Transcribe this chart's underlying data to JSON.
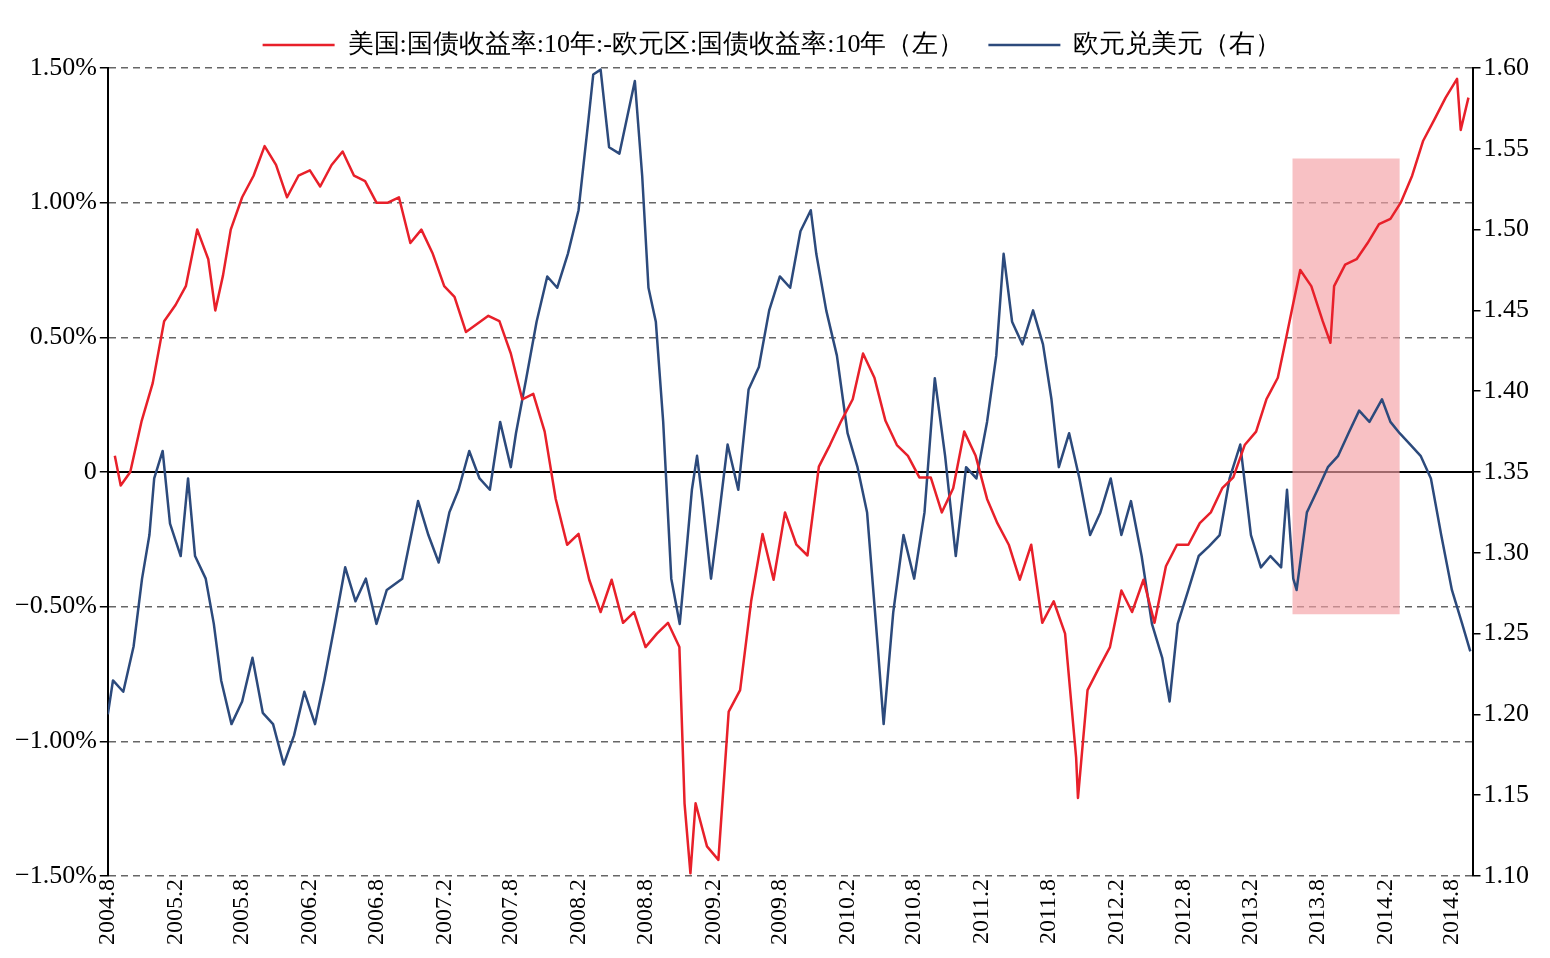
{
  "chart_data": {
    "type": "line",
    "legend": "top",
    "grid": "y",
    "xlim": [
      "2004-08-01",
      "2014-09-26"
    ],
    "xticks": [
      {
        "value": "2004-08",
        "label": "2004.8"
      },
      {
        "value": "2005-02",
        "label": "2005.2"
      },
      {
        "value": "2005-08",
        "label": "2005.8"
      },
      {
        "value": "2006-02",
        "label": "2006.2"
      },
      {
        "value": "2006-08",
        "label": "2006.8"
      },
      {
        "value": "2007-02",
        "label": "2007.2"
      },
      {
        "value": "2007-08",
        "label": "2007.8"
      },
      {
        "value": "2008-02",
        "label": "2008.2"
      },
      {
        "value": "2008-08",
        "label": "2008.8"
      },
      {
        "value": "2009-02",
        "label": "2009.2"
      },
      {
        "value": "2009-08",
        "label": "2009.8"
      },
      {
        "value": "2010-02",
        "label": "2010.2"
      },
      {
        "value": "2010-08",
        "label": "2010.8"
      },
      {
        "value": "2011-02",
        "label": "2011.2"
      },
      {
        "value": "2011-08",
        "label": "2011.8"
      },
      {
        "value": "2012-02",
        "label": "2012.2"
      },
      {
        "value": "2012-08",
        "label": "2012.8"
      },
      {
        "value": "2013-02",
        "label": "2013.2"
      },
      {
        "value": "2013-08",
        "label": "2013.8"
      },
      {
        "value": "2014-02",
        "label": "2014.2"
      },
      {
        "value": "2014-08",
        "label": "2014.8"
      }
    ],
    "ylim": [
      -1.5,
      1.5
    ],
    "yticks": [
      {
        "value": -1.5,
        "label": "−1.50%"
      },
      {
        "value": -1,
        "label": "−1.00%"
      },
      {
        "value": -0.5,
        "label": "−0.50%"
      },
      {
        "value": 0,
        "label": "0"
      },
      {
        "value": 0.5,
        "label": "0.50%"
      },
      {
        "value": 1,
        "label": "1.00%"
      },
      {
        "value": 1.5,
        "label": "1.50%"
      }
    ],
    "y2lim": [
      1.1,
      1.6
    ],
    "y2ticks": [
      {
        "value": 1.1,
        "label": "1.10"
      },
      {
        "value": 1.15,
        "label": "1.15"
      },
      {
        "value": 1.2,
        "label": "1.20"
      },
      {
        "value": 1.25,
        "label": "1.25"
      },
      {
        "value": 1.3,
        "label": "1.30"
      },
      {
        "value": 1.35,
        "label": "1.35"
      },
      {
        "value": 1.4,
        "label": "1.40"
      },
      {
        "value": 1.45,
        "label": "1.45"
      },
      {
        "value": 1.5,
        "label": "1.50"
      },
      {
        "value": 1.55,
        "label": "1.55"
      },
      {
        "value": 1.6,
        "label": "1.60"
      }
    ],
    "ref_lines": [
      {
        "axis": "y",
        "value": 0,
        "color": "#000000"
      }
    ],
    "bands": [
      {
        "axis": "x",
        "from": "2013-05-25",
        "to": "2014-03-12",
        "color": "#f4a0a4"
      }
    ],
    "series": [
      {
        "name": "美国:国债收益率:10年:-欧元区:国债收益率:10年（左）",
        "axis": "y",
        "color": "#e8202a",
        "x": [
          "2004-08-20",
          "2004-09-05",
          "2004-10-01",
          "2004-11-01",
          "2004-12-01",
          "2005-01-01",
          "2005-02-01",
          "2005-03-01",
          "2005-04-01",
          "2005-05-01",
          "2005-05-20",
          "2005-06-10",
          "2005-07-01",
          "2005-08-01",
          "2005-09-01",
          "2005-10-01",
          "2005-11-01",
          "2005-12-01",
          "2006-01-01",
          "2006-02-01",
          "2006-03-01",
          "2006-04-01",
          "2006-05-01",
          "2006-06-01",
          "2006-07-01",
          "2006-08-01",
          "2006-09-01",
          "2006-10-01",
          "2006-11-01",
          "2006-12-01",
          "2007-01-01",
          "2007-02-01",
          "2007-03-01",
          "2007-04-01",
          "2007-06-01",
          "2007-07-01",
          "2007-08-01",
          "2007-09-01",
          "2007-10-01",
          "2007-11-01",
          "2007-12-01",
          "2008-01-01",
          "2008-02-01",
          "2008-03-01",
          "2008-04-01",
          "2008-05-01",
          "2008-06-01",
          "2008-07-01",
          "2008-08-01",
          "2008-09-01",
          "2008-10-01",
          "2008-11-01",
          "2008-11-15",
          "2008-12-01",
          "2008-12-15",
          "2009-01-15",
          "2009-02-15",
          "2009-03-15",
          "2009-04-15",
          "2009-05-15",
          "2009-06-15",
          "2009-07-15",
          "2009-08-15",
          "2009-09-15",
          "2009-10-15",
          "2009-11-15",
          "2009-12-15",
          "2010-01-15",
          "2010-02-15",
          "2010-03-15",
          "2010-04-15",
          "2010-05-15",
          "2010-06-15",
          "2010-07-15",
          "2010-08-15",
          "2010-09-15",
          "2010-10-15",
          "2010-11-15",
          "2010-12-15",
          "2011-01-15",
          "2011-02-15",
          "2011-03-15",
          "2011-04-15",
          "2011-05-15",
          "2011-06-15",
          "2011-07-15",
          "2011-08-15",
          "2011-09-15",
          "2011-10-15",
          "2011-10-20",
          "2011-11-15",
          "2011-12-15",
          "2012-01-15",
          "2012-02-15",
          "2012-03-15",
          "2012-04-15",
          "2012-05-15",
          "2012-06-15",
          "2012-07-15",
          "2012-08-15",
          "2012-09-15",
          "2012-10-15",
          "2012-11-15",
          "2012-12-15",
          "2013-01-15",
          "2013-02-15",
          "2013-03-15",
          "2013-04-15",
          "2013-05-05",
          "2013-05-26",
          "2013-06-15",
          "2013-07-15",
          "2013-08-15",
          "2013-09-05",
          "2013-09-15",
          "2013-10-15",
          "2013-11-15",
          "2013-12-15",
          "2014-01-15",
          "2014-02-15",
          "2014-03-15",
          "2014-04-15",
          "2014-05-15",
          "2014-06-15",
          "2014-07-15",
          "2014-08-15",
          "2014-08-25",
          "2014-09-15"
        ],
        "values": [
          0.06,
          -0.05,
          0.0,
          0.19,
          0.33,
          0.56,
          0.62,
          0.69,
          0.9,
          0.79,
          0.6,
          0.73,
          0.9,
          1.02,
          1.1,
          1.21,
          1.14,
          1.02,
          1.1,
          1.12,
          1.06,
          1.14,
          1.19,
          1.1,
          1.08,
          1.0,
          1.0,
          1.02,
          0.85,
          0.9,
          0.81,
          0.69,
          0.65,
          0.52,
          0.58,
          0.56,
          0.44,
          0.27,
          0.29,
          0.15,
          -0.1,
          -0.27,
          -0.23,
          -0.4,
          -0.52,
          -0.4,
          -0.56,
          -0.52,
          -0.65,
          -0.6,
          -0.56,
          -0.65,
          -1.23,
          -1.49,
          -1.23,
          -1.39,
          -1.44,
          -0.89,
          -0.81,
          -0.48,
          -0.23,
          -0.4,
          -0.15,
          -0.27,
          -0.31,
          0.02,
          0.1,
          0.19,
          0.27,
          0.44,
          0.35,
          0.19,
          0.1,
          0.06,
          -0.02,
          -0.02,
          -0.15,
          -0.06,
          0.15,
          0.06,
          -0.1,
          -0.19,
          -0.27,
          -0.4,
          -0.27,
          -0.56,
          -0.48,
          -0.6,
          -1.06,
          -1.21,
          -0.81,
          -0.73,
          -0.65,
          -0.44,
          -0.52,
          -0.4,
          -0.56,
          -0.35,
          -0.27,
          -0.27,
          -0.19,
          -0.15,
          -0.06,
          -0.02,
          0.1,
          0.15,
          0.27,
          0.35,
          0.48,
          0.62,
          0.75,
          0.69,
          0.56,
          0.48,
          0.69,
          0.77,
          0.79,
          0.85,
          0.92,
          0.94,
          1.0,
          1.1,
          1.23,
          1.31,
          1.39,
          1.46,
          1.27,
          1.39
        ]
      },
      {
        "name": "欧元兑美元（右）",
        "axis": "y2",
        "color": "#2c4a7c",
        "x": [
          "2004-08-01",
          "2004-08-15",
          "2004-09-12",
          "2004-10-10",
          "2004-11-02",
          "2004-11-22",
          "2004-12-05",
          "2004-12-28",
          "2005-01-17",
          "2005-02-15",
          "2005-03-07",
          "2005-03-26",
          "2005-04-24",
          "2005-05-16",
          "2005-06-05",
          "2005-07-03",
          "2005-08-01",
          "2005-08-29",
          "2005-09-26",
          "2005-10-24",
          "2005-11-22",
          "2005-12-20",
          "2006-01-17",
          "2006-02-15",
          "2006-03-12",
          "2006-04-10",
          "2006-05-08",
          "2006-06-05",
          "2006-07-03",
          "2006-08-01",
          "2006-08-29",
          "2006-10-10",
          "2006-11-22",
          "2006-12-20",
          "2007-01-17",
          "2007-02-15",
          "2007-03-12",
          "2007-04-10",
          "2007-05-08",
          "2007-06-05",
          "2007-07-03",
          "2007-08-01",
          "2007-08-15",
          "2007-09-12",
          "2007-10-10",
          "2007-11-08",
          "2007-12-05",
          "2008-01-03",
          "2008-02-01",
          "2008-02-28",
          "2008-03-12",
          "2008-04-01",
          "2008-04-24",
          "2008-05-22",
          "2008-07-03",
          "2008-07-23",
          "2008-08-09",
          "2008-08-29",
          "2008-09-18",
          "2008-10-10",
          "2008-11-02",
          "2008-11-19",
          "2008-12-05",
          "2008-12-19",
          "2009-01-03",
          "2009-01-26",
          "2009-02-14",
          "2009-03-12",
          "2009-04-10",
          "2009-05-08",
          "2009-06-05",
          "2009-07-03",
          "2009-08-01",
          "2009-08-29",
          "2009-09-26",
          "2009-10-24",
          "2009-11-08",
          "2009-12-05",
          "2010-01-03",
          "2010-02-01",
          "2010-02-28",
          "2010-03-26",
          "2010-04-24",
          "2010-05-10",
          "2010-06-05",
          "2010-07-03",
          "2010-08-01",
          "2010-08-29",
          "2010-09-26",
          "2010-10-24",
          "2010-11-22",
          "2010-12-20",
          "2011-01-17",
          "2011-02-15",
          "2011-03-12",
          "2011-04-01",
          "2011-04-24",
          "2011-05-22",
          "2011-06-20",
          "2011-07-17",
          "2011-08-09",
          "2011-08-29",
          "2011-09-26",
          "2011-10-24",
          "2011-11-22",
          "2011-12-20",
          "2012-01-17",
          "2012-02-15",
          "2012-03-12",
          "2012-04-10",
          "2012-05-08",
          "2012-06-05",
          "2012-06-25",
          "2012-07-17",
          "2012-08-15",
          "2012-09-12",
          "2012-10-10",
          "2012-11-08",
          "2012-12-05",
          "2013-01-03",
          "2013-02-01",
          "2013-02-28",
          "2013-03-26",
          "2013-04-24",
          "2013-05-10",
          "2013-05-27",
          "2013-06-05",
          "2013-07-03",
          "2013-08-01",
          "2013-08-29",
          "2013-09-26",
          "2013-10-24",
          "2013-11-22",
          "2013-12-20",
          "2014-01-23",
          "2014-02-15",
          "2014-03-12",
          "2014-04-10",
          "2014-05-08",
          "2014-06-05",
          "2014-07-03",
          "2014-08-01",
          "2014-08-29",
          "2014-09-20"
        ],
        "values": [
          1.2,
          1.221,
          1.214,
          1.242,
          1.284,
          1.311,
          1.346,
          1.363,
          1.318,
          1.298,
          1.346,
          1.298,
          1.284,
          1.256,
          1.221,
          1.194,
          1.208,
          1.235,
          1.201,
          1.194,
          1.169,
          1.187,
          1.214,
          1.194,
          1.221,
          1.256,
          1.291,
          1.27,
          1.284,
          1.256,
          1.277,
          1.284,
          1.332,
          1.311,
          1.294,
          1.325,
          1.339,
          1.363,
          1.346,
          1.339,
          1.381,
          1.353,
          1.374,
          1.408,
          1.443,
          1.471,
          1.464,
          1.485,
          1.512,
          1.568,
          1.596,
          1.599,
          1.551,
          1.547,
          1.592,
          1.533,
          1.464,
          1.443,
          1.381,
          1.284,
          1.256,
          1.298,
          1.339,
          1.36,
          1.332,
          1.284,
          1.318,
          1.367,
          1.339,
          1.401,
          1.415,
          1.45,
          1.471,
          1.464,
          1.499,
          1.512,
          1.485,
          1.45,
          1.422,
          1.374,
          1.353,
          1.325,
          1.242,
          1.194,
          1.263,
          1.311,
          1.284,
          1.325,
          1.408,
          1.36,
          1.298,
          1.353,
          1.346,
          1.381,
          1.422,
          1.485,
          1.443,
          1.429,
          1.45,
          1.429,
          1.395,
          1.353,
          1.374,
          1.346,
          1.311,
          1.325,
          1.346,
          1.311,
          1.332,
          1.298,
          1.256,
          1.235,
          1.208,
          1.256,
          1.277,
          1.298,
          1.304,
          1.311,
          1.346,
          1.367,
          1.311,
          1.291,
          1.298,
          1.291,
          1.339,
          1.284,
          1.277,
          1.325,
          1.339,
          1.353,
          1.36,
          1.374,
          1.388,
          1.381,
          1.395,
          1.381,
          1.374,
          1.367,
          1.36,
          1.346,
          1.311,
          1.277,
          1.256,
          1.239
        ]
      }
    ]
  }
}
